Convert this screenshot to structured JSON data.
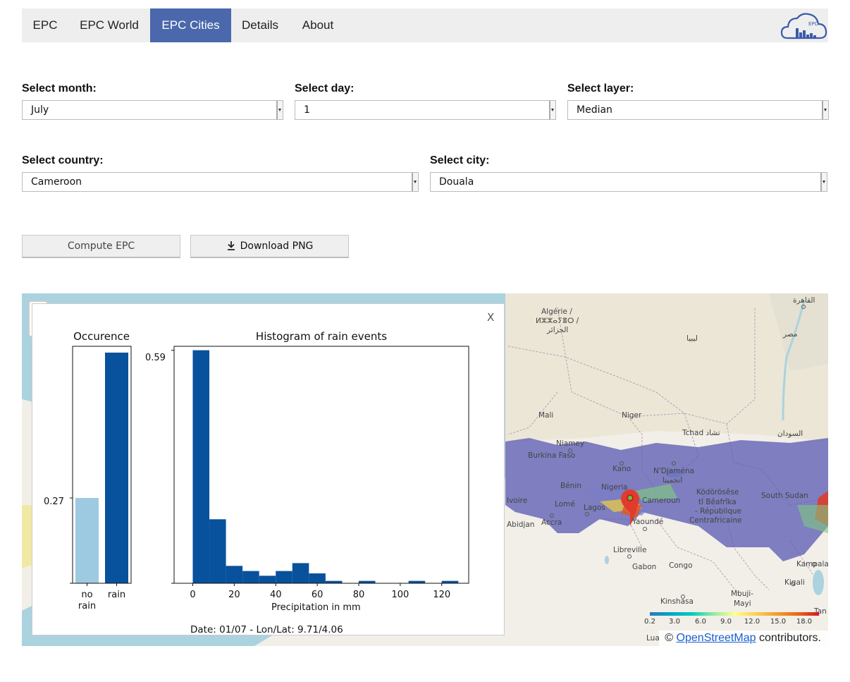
{
  "nav": {
    "tabs": [
      {
        "label": "EPC",
        "active": false
      },
      {
        "label": "EPC World",
        "active": false
      },
      {
        "label": "EPC Cities",
        "active": true
      },
      {
        "label": "Details",
        "active": false
      },
      {
        "label": "About",
        "active": false
      }
    ],
    "logo_text": "EPC",
    "accent_color": "#4a68ab"
  },
  "form": {
    "month_label": "Select month:",
    "month_value": "July",
    "day_label": "Select day:",
    "day_value": "1",
    "layer_label": "Select layer:",
    "layer_value": "Median",
    "country_label": "Select country:",
    "country_value": "Cameroon",
    "city_label": "Select city:",
    "city_value": "Douala"
  },
  "buttons": {
    "compute_label": "Compute EPC",
    "download_label": "Download PNG",
    "download_icon": "download-icon"
  },
  "map": {
    "labels": {
      "algerie1": "Algérie /",
      "algerie2": "ⵍⵣⵣⴰⵢⴻⵔ /",
      "algerie3": "الجزائر",
      "libya": "ليبيا",
      "egypt": "مصر",
      "cairo": "القاهرة",
      "mali": "Mali",
      "niger": "Niger",
      "tchad": "Tchad تشاد",
      "sudan": "السودان",
      "niamey": "Niamey",
      "burkina": "Burkina Faso",
      "kano": "Kano",
      "ndjamena1": "N'Djaména",
      "ndjamena2": "انجمينا",
      "benin": "Bénin",
      "nigeria": "Nigeria",
      "ivoire": "Ivoire",
      "lome": "Lomé",
      "lagos": "Lagos",
      "cameroun": "Cameroun",
      "car1": "Ködörösêse",
      "car2": "tî Bêafrîka",
      "car3": "- République",
      "car4": "Centrafricaine",
      "southsudan": "South Sudan",
      "abidjan": "Abidjan",
      "accra": "Accra",
      "yaounde": "Yaoundé",
      "libreville": "Libreville",
      "gabon": "Gabon",
      "congo": "Congo",
      "kampala": "Kampala",
      "kigali": "Kigali",
      "mbuji1": "Mbuji-",
      "mbuji2": "Mayi",
      "kinshasa": "Kinshasa",
      "luanda": "Lua",
      "tan": "Tan"
    },
    "legend_ticks": [
      "0.2",
      "3.0",
      "6.0",
      "9.0",
      "12.0",
      "15.0",
      "18.0"
    ],
    "attribution_prefix": "©",
    "attribution_link": "OpenStreetMap",
    "attribution_suffix": "contributors.",
    "marker_icon": "map-marker-icon"
  },
  "popup": {
    "close_label": "X",
    "info": "Date: 01/07 - Lon/Lat: 9.71/4.06"
  },
  "chart_data": [
    {
      "type": "bar",
      "title": "Occurence",
      "categories": [
        "no rain",
        "rain"
      ],
      "values": [
        0.27,
        0.73
      ],
      "colors": [
        "#9ecae1",
        "#08519c"
      ],
      "ytick_labels": [
        "0.27"
      ],
      "ylim": [
        0,
        0.75
      ]
    },
    {
      "type": "bar",
      "title": "Histogram of rain events",
      "xlabel": "Precipitation in mm",
      "ylabel": "",
      "bin_width": 8,
      "bins_start": [
        0,
        8,
        16,
        24,
        32,
        40,
        48,
        56,
        64,
        72,
        80,
        88,
        96,
        104,
        112,
        120
      ],
      "values": [
        0.59,
        0.162,
        0.044,
        0.031,
        0.019,
        0.031,
        0.051,
        0.025,
        0.006,
        0.0,
        0.006,
        0.0,
        0.0,
        0.006,
        0.0,
        0.006
      ],
      "xticks": [
        "0",
        "20",
        "40",
        "60",
        "80",
        "100",
        "120"
      ],
      "xlim": [
        -9,
        133
      ],
      "ytick_labels": [
        "0.59"
      ],
      "ylim": [
        0,
        0.6
      ],
      "color": "#08519c"
    }
  ]
}
